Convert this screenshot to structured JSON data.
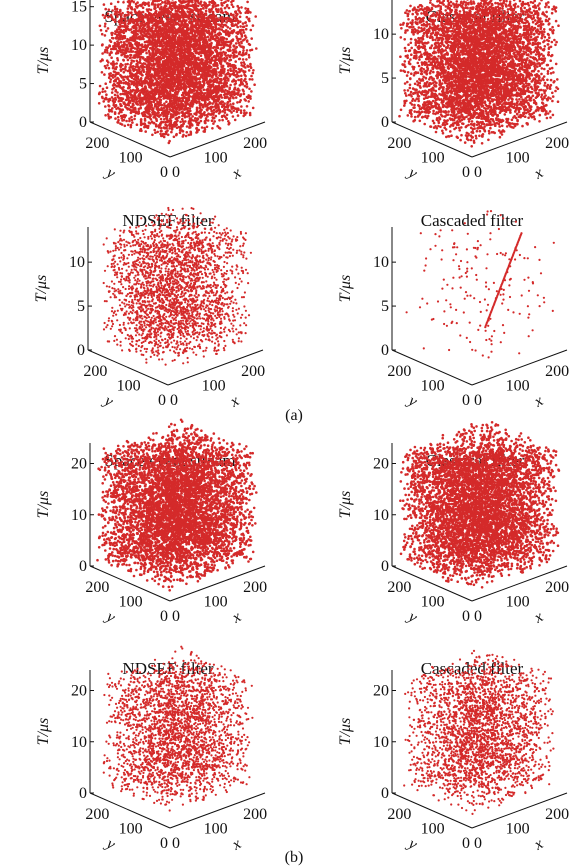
{
  "figure": {
    "caption_a": "(a)",
    "caption_b": "(b)",
    "point_color": "#d42a2a",
    "axis_color": "#111111"
  },
  "chart_data": [
    {
      "type": "scatter",
      "group": "a",
      "style": "dense",
      "title": "Space event stream",
      "xlabel": "x",
      "ylabel": "y",
      "zlabel": "T/μs",
      "xlim": [
        0,
        240
      ],
      "ylim": [
        0,
        240
      ],
      "zlim": [
        0,
        16
      ],
      "x_ticks": [
        "0",
        "100",
        "200"
      ],
      "y_ticks": [
        "0",
        "100",
        "200"
      ],
      "z_ticks": [
        "0",
        "5",
        "10",
        "15"
      ]
    },
    {
      "type": "scatter",
      "group": "a",
      "style": "dense",
      "title": "Classical filter",
      "xlabel": "x",
      "ylabel": "y",
      "zlabel": "T/μs",
      "xlim": [
        0,
        240
      ],
      "ylim": [
        0,
        240
      ],
      "zlim": [
        0,
        14
      ],
      "x_ticks": [
        "0",
        "100",
        "200"
      ],
      "y_ticks": [
        "0",
        "100",
        "200"
      ],
      "z_ticks": [
        "0",
        "5",
        "10"
      ]
    },
    {
      "type": "scatter",
      "group": "a",
      "style": "medium",
      "title": "NDSEF filter",
      "xlabel": "x",
      "ylabel": "y",
      "zlabel": "T/μs",
      "xlim": [
        0,
        240
      ],
      "ylim": [
        0,
        240
      ],
      "zlim": [
        0,
        14
      ],
      "x_ticks": [
        "0",
        "100",
        "200"
      ],
      "y_ticks": [
        "0",
        "100",
        "200"
      ],
      "z_ticks": [
        "0",
        "5",
        "10"
      ]
    },
    {
      "type": "scatter",
      "group": "a",
      "style": "sparse",
      "title": "Cascaded filter",
      "xlabel": "x",
      "ylabel": "y",
      "zlabel": "T/μs",
      "xlim": [
        0,
        240
      ],
      "ylim": [
        0,
        240
      ],
      "zlim": [
        0,
        14
      ],
      "x_ticks": [
        "0",
        "100",
        "200"
      ],
      "y_ticks": [
        "0",
        "100",
        "200"
      ],
      "z_ticks": [
        "0",
        "5",
        "10"
      ]
    },
    {
      "type": "scatter",
      "group": "b",
      "style": "dense",
      "title": "Space event stream",
      "xlabel": "x",
      "ylabel": "y",
      "zlabel": "T/μs",
      "xlim": [
        0,
        240
      ],
      "ylim": [
        0,
        240
      ],
      "zlim": [
        0,
        24
      ],
      "x_ticks": [
        "0",
        "100",
        "200"
      ],
      "y_ticks": [
        "0",
        "100",
        "200"
      ],
      "z_ticks": [
        "0",
        "10",
        "20"
      ]
    },
    {
      "type": "scatter",
      "group": "b",
      "style": "dense",
      "title": "Classical filter",
      "xlabel": "x",
      "ylabel": "y",
      "zlabel": "T/μs",
      "xlim": [
        0,
        240
      ],
      "ylim": [
        0,
        240
      ],
      "zlim": [
        0,
        24
      ],
      "x_ticks": [
        "0",
        "100",
        "200"
      ],
      "y_ticks": [
        "0",
        "100",
        "200"
      ],
      "z_ticks": [
        "0",
        "10",
        "20"
      ]
    },
    {
      "type": "scatter",
      "group": "b",
      "style": "medium",
      "title": "NDSEF filter",
      "xlabel": "x",
      "ylabel": "y",
      "zlabel": "T/μs",
      "xlim": [
        0,
        240
      ],
      "ylim": [
        0,
        240
      ],
      "zlim": [
        0,
        24
      ],
      "x_ticks": [
        "0",
        "100",
        "200"
      ],
      "y_ticks": [
        "0",
        "100",
        "200"
      ],
      "z_ticks": [
        "0",
        "10",
        "20"
      ]
    },
    {
      "type": "scatter",
      "group": "b",
      "style": "medium",
      "title": "Cascaded filter",
      "xlabel": "x",
      "ylabel": "y",
      "zlabel": "T/μs",
      "xlim": [
        0,
        240
      ],
      "ylim": [
        0,
        240
      ],
      "zlim": [
        0,
        24
      ],
      "x_ticks": [
        "0",
        "100",
        "200"
      ],
      "y_ticks": [
        "0",
        "100",
        "200"
      ],
      "z_ticks": [
        "0",
        "10",
        "20"
      ]
    }
  ]
}
